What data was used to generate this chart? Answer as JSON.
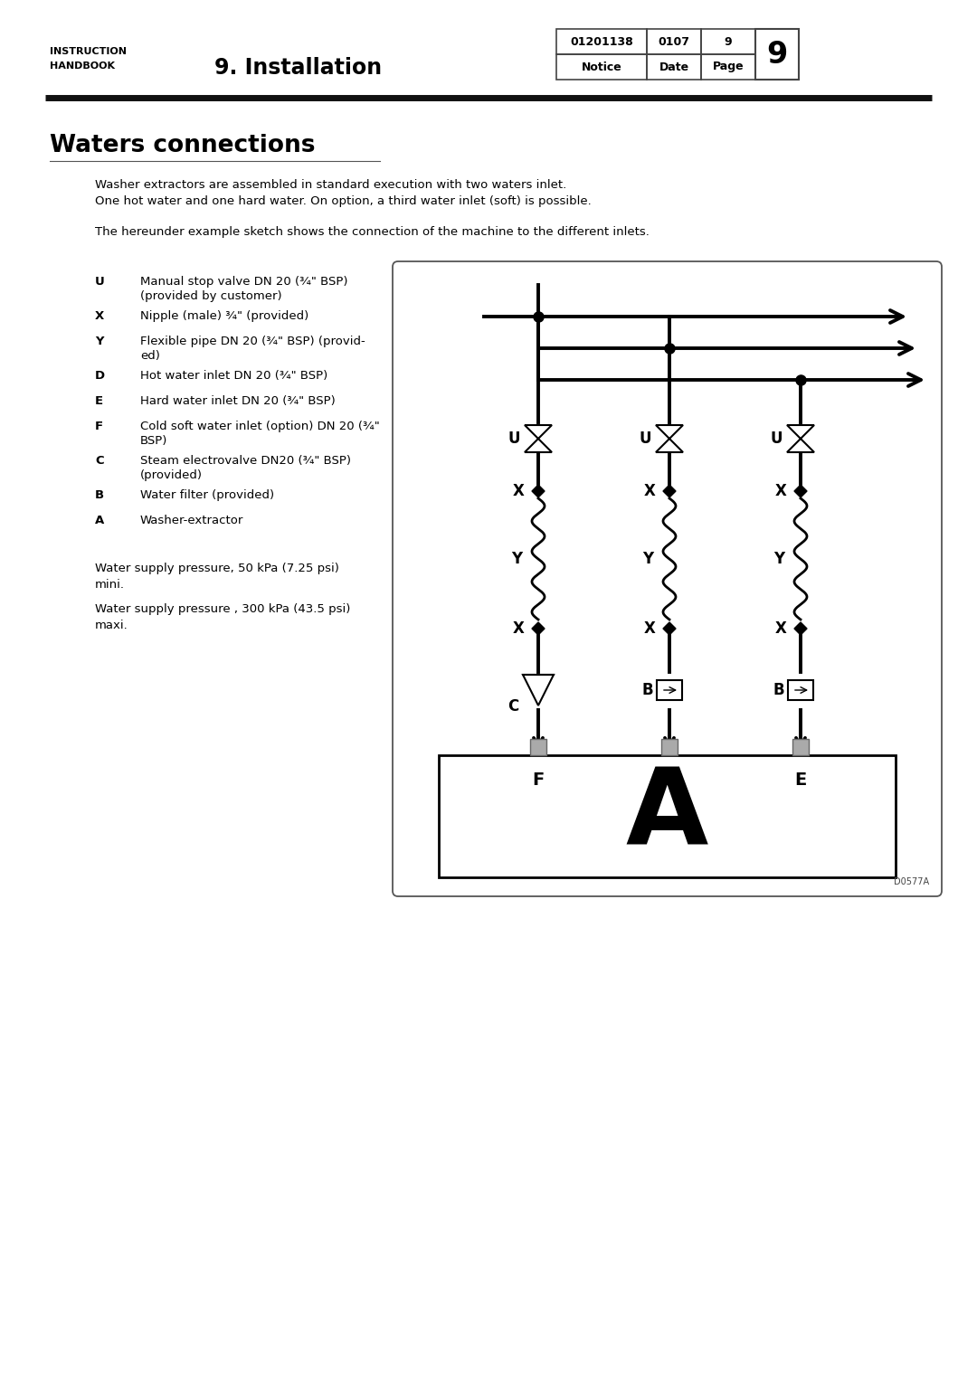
{
  "title": "Waters connections",
  "header_left_line1": "INSTRUCTION",
  "header_left_line2": "HANDBOOK",
  "header_center": "9. Installation",
  "header_table": {
    "col1": "01201138",
    "col2": "0107",
    "col3": "9",
    "page_num": "9",
    "row2_col1": "Notice",
    "row2_col2": "Date",
    "row2_col3": "Page"
  },
  "para1": "Washer extractors are assembled in standard execution with two waters inlet.\nOne hot water and one hard water. On option, a third water inlet (soft) is possible.",
  "para2": "The hereunder example sketch shows the connection of the machine to the different inlets.",
  "legend": [
    {
      "key": "U",
      "text": "Manual stop valve DN 20 (¾\" BSP)\n(provided by customer)"
    },
    {
      "key": "X",
      "text": "Nipple (male) ¾\" (provided)"
    },
    {
      "key": "Y",
      "text": "Flexible pipe DN 20 (¾\" BSP) (provid-\ned)"
    },
    {
      "key": "D",
      "text": "Hot water inlet DN 20 (¾\" BSP)"
    },
    {
      "key": "E",
      "text": "Hard water inlet DN 20 (¾\" BSP)"
    },
    {
      "key": "F",
      "text": "Cold soft water inlet (option) DN 20 (¾\"\nBSP)"
    },
    {
      "key": "C",
      "text": "Steam electrovalve DN20 (¾\" BSP)\n(provided)"
    },
    {
      "key": "B",
      "text": "Water filter (provided)"
    },
    {
      "key": "A",
      "text": "Washer-extractor"
    }
  ],
  "pressure1": "Water supply pressure, 50 kPa (7.25 psi)\nmini.",
  "pressure2": "Water supply pressure , 300 kPa (43.5 psi)\nmaxi.",
  "diagram_label": "D0577A",
  "bg_color": "#ffffff",
  "text_color": "#000000"
}
